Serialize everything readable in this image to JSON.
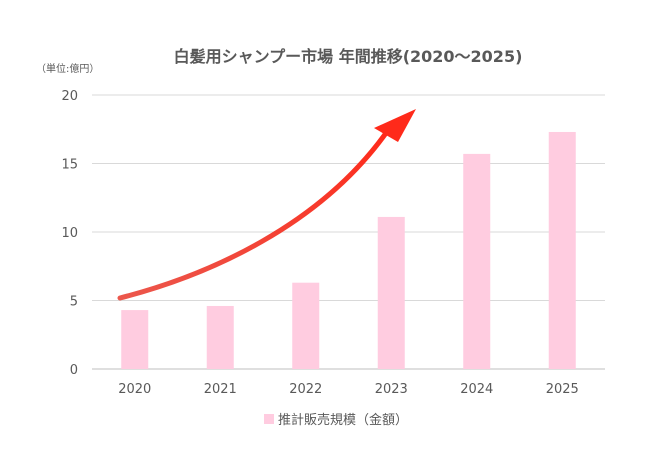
{
  "chart_data": {
    "type": "bar",
    "title": "白髪用シャンプー市場 年間推移(2020〜2025)",
    "unit_label": "（単位:億円）",
    "categories": [
      "2020",
      "2021",
      "2022",
      "2023",
      "2024",
      "2025"
    ],
    "series": [
      {
        "name": "推計販売規模（金額）",
        "values": [
          4.3,
          4.6,
          6.3,
          11.1,
          15.7,
          17.3
        ],
        "color": "#ffcce0"
      }
    ],
    "ylim": [
      0,
      20
    ],
    "yticks": [
      "0",
      "5",
      "10",
      "15",
      "20"
    ],
    "ytick_values": [
      0,
      5,
      10,
      15,
      20
    ],
    "grid": true,
    "legend_position": "bottom",
    "annotation": {
      "type": "trend-arrow",
      "color": "#e8392c"
    }
  }
}
